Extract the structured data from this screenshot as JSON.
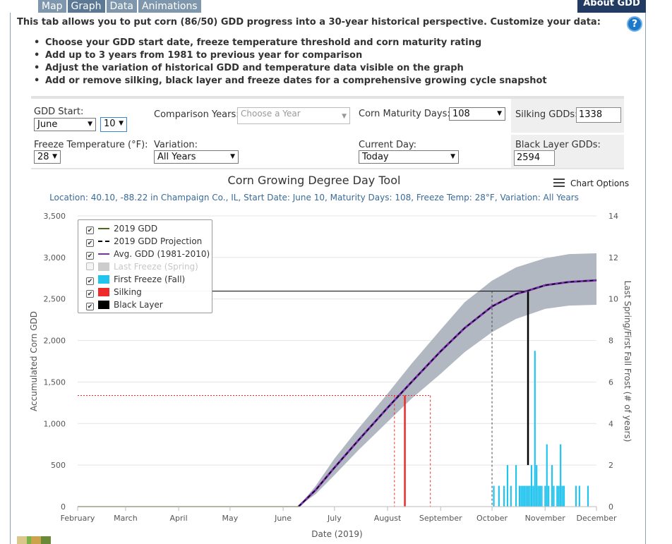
{
  "tabs": [
    {
      "label": "Map",
      "active": false
    },
    {
      "label": "Graph",
      "active": true
    },
    {
      "label": "Data",
      "active": false
    },
    {
      "label": "Animations",
      "active": false
    }
  ],
  "about_button": "About GDD",
  "help_icon": "?",
  "intro": "This tab allows you to put corn (86/50) GDD progress into a 30-year historical perspective. Customize your data:",
  "bullets": [
    "Choose your GDD start date, freeze temperature threshold and corn maturity rating",
    "Add up to 3 years from 1981 to previous year for comparison",
    "Adjust the variation of historical GDD and temperature data visible on the graph",
    "Add or remove silking, black layer and freeze dates for a comprehensive growing cycle snapshot"
  ],
  "controls": {
    "gdd_start_label": "GDD Start:",
    "gdd_start_month": "June",
    "gdd_start_day": "10",
    "comparison_years_label": "Comparison Years:",
    "comparison_years_placeholder": "Choose a Year",
    "maturity_label": "Corn Maturity Days:",
    "maturity_value": "108",
    "silking_label": "Silking GDDs:",
    "silking_value": "1338",
    "freeze_label": "Freeze Temperature (°F):",
    "freeze_value": "28",
    "variation_label": "Variation:",
    "variation_value": "All Years",
    "current_day_label": "Current Day:",
    "current_day_value": "Today",
    "black_layer_label": "Black Layer GDDs:",
    "black_layer_value": "2594"
  },
  "chart_options_label": "Chart Options",
  "legend": [
    {
      "label": "2019 GDD",
      "checked": true,
      "symbol": "line",
      "color": "#4a6b1a"
    },
    {
      "label": "2019 GDD Projection",
      "checked": true,
      "symbol": "dashed",
      "color": "#000000"
    },
    {
      "label": "Avg. GDD (1981-2010)",
      "checked": true,
      "symbol": "line",
      "color": "#7a2fb0"
    },
    {
      "label": "Last Freeze (Spring)",
      "checked": false,
      "symbol": "box",
      "color": "#cccccc"
    },
    {
      "label": "First Freeze (Fall)",
      "checked": true,
      "symbol": "box",
      "color": "#22c4ee"
    },
    {
      "label": "Silking",
      "checked": true,
      "symbol": "box",
      "color": "#ee2a2a"
    },
    {
      "label": "Black Layer",
      "checked": true,
      "symbol": "box",
      "color": "#000000"
    }
  ],
  "chart_data": {
    "type": "line",
    "title": "Corn Growing Degree Day Tool",
    "subtitle": "Location: 40.10, -88.22 in Champaign Co., IL, Start Date: June 10, Maturity Days: 108, Freeze Temp: 28°F, Variation: All Years",
    "xlabel": "Date (2019)",
    "ylabel": "Accumulated Corn GDD",
    "y2label": "Last Spring/First Fall Frost (# of years)",
    "x_ticks": [
      "February",
      "March",
      "April",
      "May",
      "June",
      "July",
      "August",
      "September",
      "October",
      "November",
      "December"
    ],
    "x_range": [
      "2019-02-01",
      "2019-12-01"
    ],
    "ylim": [
      0,
      3500
    ],
    "y_ticks": [
      0,
      500,
      1000,
      1500,
      2000,
      2500,
      3000,
      3500
    ],
    "y2lim": [
      0,
      14
    ],
    "y2_ticks": [
      0,
      2,
      4,
      6,
      8,
      10,
      12,
      14
    ],
    "grid": true,
    "legend_position": "top-left",
    "colors": {
      "band": "#adb4bf",
      "gdd2019": "#4a6b1a",
      "avg": "#7a2fb0",
      "projection": "#000000",
      "freeze": "#22c4ee",
      "silking": "#ee2a2a",
      "black_layer": "#000000"
    },
    "series": [
      {
        "name": "2019 GDD",
        "x": [
          "2019-02-01",
          "2019-06-10"
        ],
        "y": [
          0,
          0
        ]
      },
      {
        "name": "2019 GDD Projection",
        "x": [
          "2019-06-10",
          "2019-06-20",
          "2019-07-01",
          "2019-07-15",
          "2019-08-01",
          "2019-08-15",
          "2019-09-01",
          "2019-09-15",
          "2019-10-01",
          "2019-10-15",
          "2019-10-22",
          "2019-11-01",
          "2019-11-15",
          "2019-12-01"
        ],
        "y": [
          0,
          200,
          470,
          800,
          1190,
          1500,
          1870,
          2150,
          2410,
          2560,
          2600,
          2665,
          2705,
          2725
        ]
      },
      {
        "name": "Avg. GDD (1981-2010)",
        "x": [
          "2019-06-10",
          "2019-06-20",
          "2019-07-01",
          "2019-07-15",
          "2019-08-01",
          "2019-08-15",
          "2019-09-01",
          "2019-09-15",
          "2019-10-01",
          "2019-10-15",
          "2019-10-22",
          "2019-11-01",
          "2019-11-15",
          "2019-12-01"
        ],
        "y": [
          0,
          200,
          470,
          800,
          1190,
          1500,
          1870,
          2150,
          2410,
          2560,
          2600,
          2665,
          2705,
          2725
        ]
      }
    ],
    "variation_band": {
      "x": [
        "2019-06-10",
        "2019-06-20",
        "2019-07-01",
        "2019-07-15",
        "2019-08-01",
        "2019-08-15",
        "2019-09-01",
        "2019-09-15",
        "2019-10-01",
        "2019-10-15",
        "2019-11-01",
        "2019-11-15",
        "2019-12-01"
      ],
      "low": [
        0,
        150,
        380,
        680,
        1020,
        1300,
        1600,
        1860,
        2100,
        2260,
        2380,
        2420,
        2430
      ],
      "high": [
        0,
        250,
        580,
        940,
        1360,
        1720,
        2130,
        2460,
        2720,
        2880,
        2990,
        3040,
        3050
      ]
    },
    "silking": {
      "value": 1338,
      "date": "2019-08-11",
      "range": [
        "2019-08-05",
        "2019-08-26"
      ]
    },
    "black_layer": {
      "value": 2594,
      "date": "2019-10-22",
      "range_start": "2019-10-01",
      "bar_height": 2
    },
    "first_freeze_counts": [
      {
        "date": "2019-10-02",
        "count": 1
      },
      {
        "date": "2019-10-05",
        "count": 1
      },
      {
        "date": "2019-10-08",
        "count": 1
      },
      {
        "date": "2019-10-10",
        "count": 2
      },
      {
        "date": "2019-10-12",
        "count": 1
      },
      {
        "date": "2019-10-15",
        "count": 2
      },
      {
        "date": "2019-10-17",
        "count": 1
      },
      {
        "date": "2019-10-18",
        "count": 1
      },
      {
        "date": "2019-10-19",
        "count": 1
      },
      {
        "date": "2019-10-20",
        "count": 1
      },
      {
        "date": "2019-10-21",
        "count": 1
      },
      {
        "date": "2019-10-22",
        "count": 1
      },
      {
        "date": "2019-10-23",
        "count": 1
      },
      {
        "date": "2019-10-24",
        "count": 2
      },
      {
        "date": "2019-10-25",
        "count": 1
      },
      {
        "date": "2019-10-26",
        "count": 7.5
      },
      {
        "date": "2019-10-27",
        "count": 2
      },
      {
        "date": "2019-10-28",
        "count": 1
      },
      {
        "date": "2019-10-29",
        "count": 1
      },
      {
        "date": "2019-10-30",
        "count": 1
      },
      {
        "date": "2019-11-01",
        "count": 1
      },
      {
        "date": "2019-11-02",
        "count": 3
      },
      {
        "date": "2019-11-03",
        "count": 1
      },
      {
        "date": "2019-11-05",
        "count": 2
      },
      {
        "date": "2019-11-06",
        "count": 1
      },
      {
        "date": "2019-11-08",
        "count": 1
      },
      {
        "date": "2019-11-09",
        "count": 1
      },
      {
        "date": "2019-11-10",
        "count": 3
      },
      {
        "date": "2019-11-11",
        "count": 1
      },
      {
        "date": "2019-11-12",
        "count": 1
      },
      {
        "date": "2019-11-19",
        "count": 1
      },
      {
        "date": "2019-11-21",
        "count": 1
      },
      {
        "date": "2019-11-26",
        "count": 1
      }
    ]
  }
}
